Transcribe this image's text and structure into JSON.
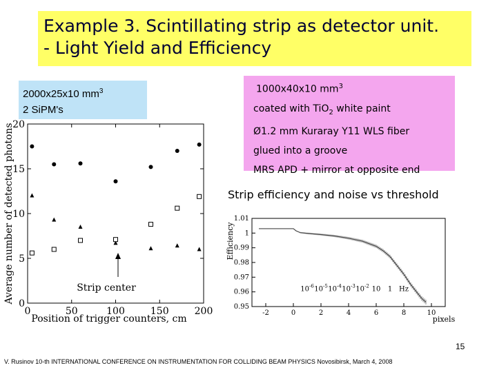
{
  "title": {
    "line1": "Example 3. Scintillating strip as detector unit.",
    "line2": "- Light Yield and Efficiency"
  },
  "left_spec": {
    "line1_text": "2000x25x10 mm",
    "line1_sup": "3",
    "line2": "2 SiPM's"
  },
  "right_spec": {
    "line1_text": "1000x40x10 mm",
    "line1_sup": "3",
    "line2_pre": "coated with TiO",
    "line2_sub": "2",
    "line2_post": " white paint",
    "line3": "Ø1.2 mm Kuraray Y11 WLS  fiber",
    "line4": "glued into a groove",
    "line5": "MRS APD + mirror at opposite end"
  },
  "strip_title": "Strip efficiency and noise vs threshold",
  "page_number": "15",
  "footer": "V. Rusinov 10-th INTERNATIONAL CONFERENCE ON INSTRUMENTATION FOR COLLIDING BEAM PHYSICS Novosibirsk,   March 4, 2008",
  "chart_data": [
    {
      "type": "scatter",
      "title": "",
      "xlabel": "Position of trigger counters,  cm",
      "ylabel": "Average number of detected photons",
      "xlim": [
        0,
        200
      ],
      "ylim": [
        0,
        20
      ],
      "xticks": [
        "0",
        "50",
        "100",
        "150",
        "200"
      ],
      "yticks": [
        "0",
        "5",
        "10",
        "15",
        "20"
      ],
      "annotation": "Strip center",
      "series": [
        {
          "marker": "circle",
          "x": [
            5,
            30,
            60,
            100,
            140,
            170,
            195
          ],
          "y": [
            17.5,
            15.5,
            15.6,
            13.6,
            15.2,
            17.0,
            17.7
          ]
        },
        {
          "marker": "triangle",
          "x": [
            5,
            30,
            60,
            100,
            140,
            170,
            195
          ],
          "y": [
            12.0,
            9.3,
            8.5,
            6.7,
            6.1,
            6.4,
            6.0
          ]
        },
        {
          "marker": "square",
          "x": [
            5,
            30,
            60,
            100,
            140,
            170,
            195
          ],
          "y": [
            5.6,
            6.0,
            7.0,
            7.1,
            8.8,
            10.6,
            11.9
          ]
        }
      ]
    },
    {
      "type": "line",
      "title": "",
      "xlabel": "pixels",
      "ylabel": "Efficiency",
      "xlim": [
        -3,
        11
      ],
      "ylim": [
        0.95,
        1.01
      ],
      "xticks": [
        "-2",
        "0",
        "2",
        "4",
        "6",
        "8",
        "10"
      ],
      "yticks": [
        "0.95",
        "0.96",
        "0.97",
        "0.98",
        "0.99",
        "1",
        "1.01"
      ],
      "series": [
        {
          "x": [
            -2.5,
            -1,
            0,
            0.2,
            0.5,
            1,
            2,
            3,
            4,
            5,
            6,
            6.5,
            7,
            7.5,
            8,
            8.5,
            9,
            9.3,
            9.6
          ],
          "y": [
            1.003,
            1.003,
            1.003,
            1.0015,
            1.0003,
            0.9998,
            0.999,
            0.998,
            0.9965,
            0.9945,
            0.991,
            0.988,
            0.984,
            0.978,
            0.972,
            0.965,
            0.959,
            0.9555,
            0.953
          ]
        }
      ],
      "noise_labels": [
        {
          "base": "10",
          "exp": "-6",
          "x": 1
        },
        {
          "base": "10",
          "exp": "-5",
          "x": 2
        },
        {
          "base": "10",
          "exp": "-4",
          "x": 3
        },
        {
          "base": "10",
          "exp": "-3",
          "x": 4
        },
        {
          "base": "10",
          "exp": "-2",
          "x": 5
        },
        {
          "base": "10",
          "exp": "",
          "x": 6
        },
        {
          "base": "1",
          "exp": "",
          "x": 7
        },
        {
          "base": "Hz",
          "exp": "",
          "x": 8
        }
      ]
    }
  ]
}
